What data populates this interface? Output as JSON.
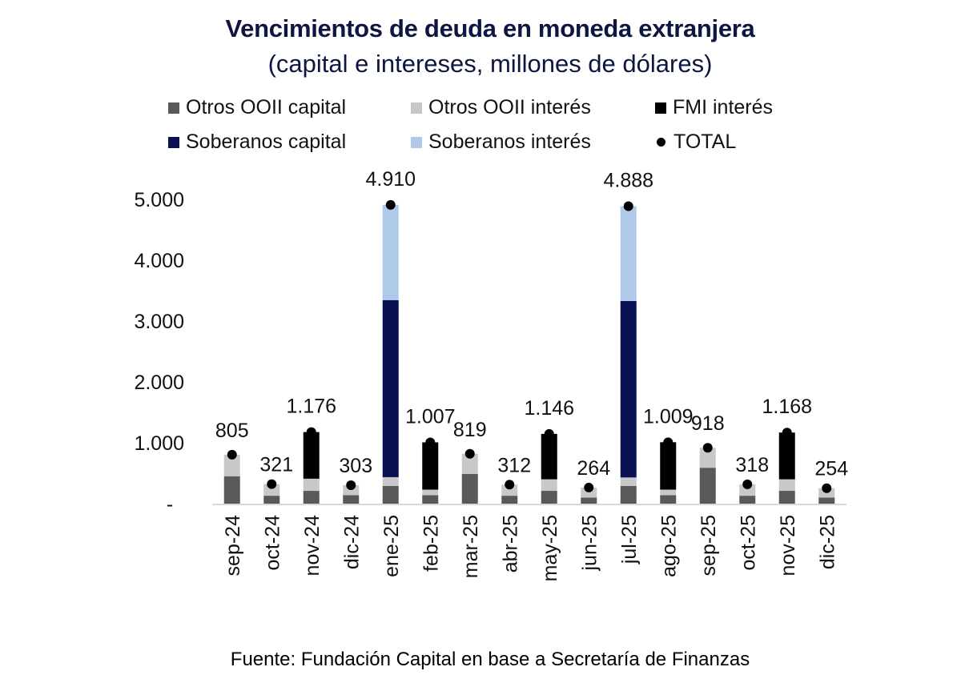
{
  "chart_data": {
    "type": "bar",
    "stacked": true,
    "title": "Vencimientos de deuda en moneda extranjera",
    "subtitle": "(capital e intereses, millones de dólares)",
    "xlabel": "",
    "ylabel": "",
    "ylim": [
      0,
      5000
    ],
    "yticks": [
      0,
      1000,
      2000,
      3000,
      4000,
      5000
    ],
    "ytick_labels": [
      "-",
      "1.000",
      "2.000",
      "3.000",
      "4.000",
      "5.000"
    ],
    "grid": false,
    "legend_position": "top",
    "categories": [
      "sep-24",
      "oct-24",
      "nov-24",
      "dic-24",
      "ene-25",
      "feb-25",
      "mar-25",
      "abr-25",
      "may-25",
      "jun-25",
      "jul-25",
      "ago-25",
      "sep-25",
      "oct-25",
      "nov-25",
      "dic-25"
    ],
    "series": [
      {
        "name": "Otros OOII capital",
        "color": "#595959",
        "values": [
          450,
          130,
          210,
          140,
          290,
          140,
          487,
          130,
          210,
          100,
          290,
          140,
          590,
          130,
          210,
          100
        ]
      },
      {
        "name": "Otros OOII interés",
        "color": "#c8c8c8",
        "values": [
          355,
          191,
          200,
          163,
          145,
          90,
          332,
          182,
          190,
          164,
          140,
          90,
          328,
          188,
          190,
          154
        ]
      },
      {
        "name": "FMI interés",
        "color": "#000000",
        "values": [
          0,
          0,
          766,
          0,
          0,
          777,
          0,
          0,
          746,
          0,
          0,
          779,
          0,
          0,
          768,
          0
        ]
      },
      {
        "name": "Soberanos capital",
        "color": "#0a1253",
        "values": [
          0,
          0,
          0,
          0,
          2910,
          0,
          0,
          0,
          0,
          0,
          2900,
          0,
          0,
          0,
          0,
          0
        ]
      },
      {
        "name": "Soberanos interés",
        "color": "#afc9e8",
        "values": [
          0,
          0,
          0,
          0,
          1565,
          0,
          0,
          0,
          0,
          0,
          1558,
          0,
          0,
          0,
          0,
          0
        ]
      }
    ],
    "total": {
      "name": "TOTAL",
      "marker": "dot",
      "values": [
        805,
        321,
        1176,
        303,
        4910,
        1007,
        819,
        312,
        1146,
        264,
        4888,
        1009,
        918,
        318,
        1168,
        254
      ],
      "labels": [
        "805",
        "321",
        "1.176",
        "303",
        "4.910",
        "1.007",
        "819",
        "312",
        "1.146",
        "264",
        "4.888",
        "1.009",
        "918",
        "318",
        "1.168",
        "254"
      ]
    },
    "legend": [
      {
        "label": "Otros OOII capital",
        "color": "#595959",
        "marker": "square"
      },
      {
        "label": "Otros OOII interés",
        "color": "#c8c8c8",
        "marker": "square"
      },
      {
        "label": "FMI interés",
        "color": "#000000",
        "marker": "square"
      },
      {
        "label": "Soberanos capital",
        "color": "#0a1253",
        "marker": "square"
      },
      {
        "label": "Soberanos interés",
        "color": "#afc9e8",
        "marker": "square"
      },
      {
        "label": "TOTAL",
        "color": "#000000",
        "marker": "dot"
      }
    ],
    "source": "Fuente: Fundación Capital en base a Secretaría de Finanzas"
  }
}
